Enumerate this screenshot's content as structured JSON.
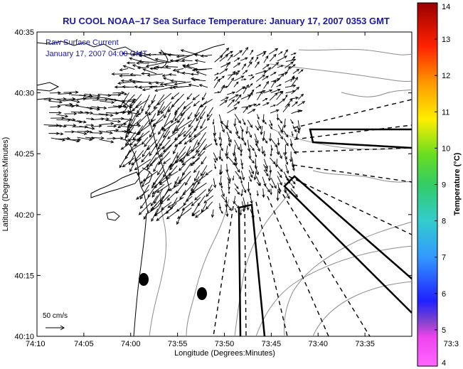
{
  "chart_data": {
    "type": "vector-field",
    "title": "RU COOL  NOAA–17  Sea Surface Temperature:  January 17, 2007 0353 GMT",
    "xlabel": "Longitude (Degrees:Minutes)",
    "ylabel": "Latitude (Degrees:Minutes)",
    "x_ticks": [
      "74:10",
      "74:05",
      "74:00",
      "73:55",
      "73:50",
      "73:45",
      "73:40",
      "73:35",
      "73:3"
    ],
    "y_ticks": [
      "40:35",
      "40:30",
      "40:25",
      "40:20",
      "40:15",
      "40:10"
    ],
    "xlim_minutes_west": [
      10,
      -30
    ],
    "ylim_minutes_north": [
      10,
      35
    ],
    "annotation": {
      "line1": "Raw Surface Current",
      "line2": "January 17, 2007 04:00 GMT"
    },
    "scale_label": "50 cm/s",
    "colorbar": {
      "label": "Temperature (°C)",
      "min": 4,
      "max": 14,
      "ticks": [
        "14",
        "13",
        "12",
        "11",
        "10",
        "9",
        "8",
        "7",
        "6",
        "5",
        "4"
      ]
    },
    "colors": {
      "title": "#1a1aa6",
      "annotation": "#1a1aa6",
      "vectors": "#000000",
      "coast": "#000000",
      "bathymetry": "#8c8c8c"
    }
  }
}
